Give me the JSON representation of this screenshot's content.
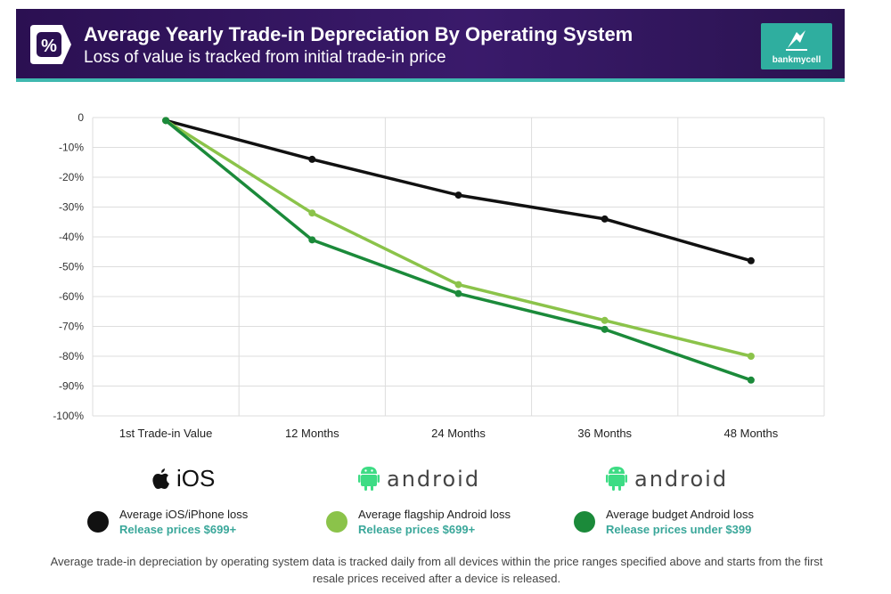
{
  "header": {
    "title": "Average Yearly Trade-in Depreciation By Operating System",
    "subtitle": "Loss of value is tracked from initial trade-in price",
    "badge_icon": "percent-tag-icon",
    "logo_text": "bankmycell",
    "logo_icon": "bankmycell-logo-icon",
    "bg_color": "#2b1052",
    "accent_color": "#3fb8af"
  },
  "chart_data": {
    "type": "line",
    "categories": [
      "1st Trade-in Value",
      "12 Months",
      "24 Months",
      "36 Months",
      "48 Months"
    ],
    "series": [
      {
        "name": "Average iOS/iPhone loss",
        "color": "#111111",
        "values": [
          -1,
          -14,
          -26,
          -34,
          -48
        ]
      },
      {
        "name": "Average flagship Android loss",
        "color": "#8bc34a",
        "values": [
          -1,
          -32,
          -56,
          -68,
          -80
        ]
      },
      {
        "name": "Average budget Android loss",
        "color": "#1b8a3a",
        "values": [
          -1,
          -41,
          -59,
          -71,
          -88
        ]
      }
    ],
    "yticks": [
      "0",
      "-10%",
      "-20%",
      "-30%",
      "-40%",
      "-50%",
      "-60%",
      "-70%",
      "-80%",
      "-90%",
      "-100%"
    ],
    "ylim": [
      -100,
      0
    ],
    "grid": true
  },
  "legend": [
    {
      "brand": "iOS",
      "brand_icon": "apple-icon",
      "name": "Average iOS/iPhone loss",
      "sub": "Release prices $699+",
      "color": "#111111"
    },
    {
      "brand": "android",
      "brand_icon": "android-robot-icon",
      "name": "Average flagship Android loss",
      "sub": "Release prices $699+",
      "color": "#8bc34a"
    },
    {
      "brand": "android",
      "brand_icon": "android-robot-icon",
      "name": "Average budget Android loss",
      "sub": "Release prices under $399",
      "color": "#1b8a3a"
    }
  ],
  "footnote": "Average trade-in depreciation by operating system data is tracked daily from all devices within the price ranges specified above and starts from the first resale prices received after a device is released."
}
